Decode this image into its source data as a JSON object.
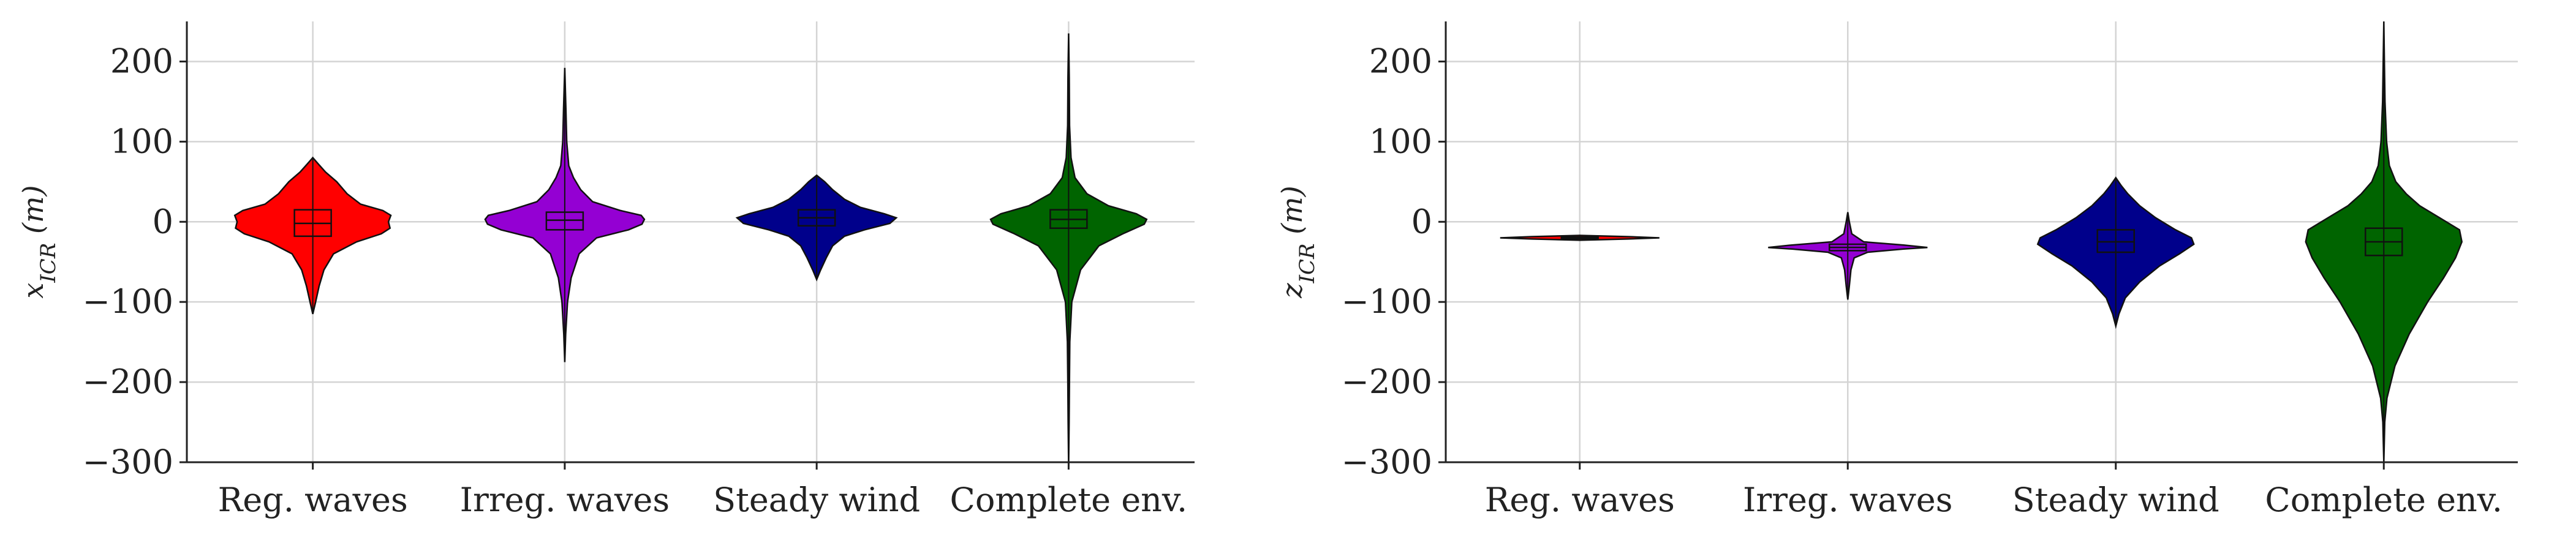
{
  "chart_data": [
    {
      "type": "violin",
      "ylabel": "x_ICR (m)",
      "ylim": [
        -300,
        250
      ],
      "yticks": [
        200,
        100,
        0,
        -100,
        -200,
        -300
      ],
      "ytick_labels": [
        "200",
        "100",
        "0",
        "−100",
        "−200",
        "−300"
      ],
      "categories": [
        "Reg. waves",
        "Irreg. waves",
        "Steady wind",
        "Complete env."
      ],
      "grid": true,
      "series": [
        {
          "color": "#ff0000",
          "min": -115,
          "q1": -18,
          "median": -2,
          "q3": 15,
          "max": 80,
          "density": [
            [
              -115,
              0
            ],
            [
              -100,
              0.035
            ],
            [
              -80,
              0.08
            ],
            [
              -60,
              0.14
            ],
            [
              -40,
              0.26
            ],
            [
              -25,
              0.55
            ],
            [
              -15,
              0.86
            ],
            [
              -8,
              0.97
            ],
            [
              0,
              0.95
            ],
            [
              8,
              0.98
            ],
            [
              14,
              0.88
            ],
            [
              22,
              0.6
            ],
            [
              35,
              0.43
            ],
            [
              50,
              0.3
            ],
            [
              62,
              0.16
            ],
            [
              72,
              0.07
            ],
            [
              80,
              0
            ]
          ]
        },
        {
          "color": "#9400d3",
          "min": -175,
          "q1": -10,
          "median": 2,
          "q3": 12,
          "max": 192,
          "density": [
            [
              -175,
              0
            ],
            [
              -140,
              0.012
            ],
            [
              -100,
              0.035
            ],
            [
              -70,
              0.08
            ],
            [
              -40,
              0.18
            ],
            [
              -20,
              0.4
            ],
            [
              -10,
              0.8
            ],
            [
              -3,
              0.97
            ],
            [
              3,
              1
            ],
            [
              8,
              0.96
            ],
            [
              14,
              0.7
            ],
            [
              25,
              0.35
            ],
            [
              40,
              0.2
            ],
            [
              55,
              0.11
            ],
            [
              70,
              0.05
            ],
            [
              100,
              0.025
            ],
            [
              140,
              0.015
            ],
            [
              192,
              0
            ]
          ]
        },
        {
          "color": "#00008b",
          "min": -72,
          "q1": -5,
          "median": 5,
          "q3": 15,
          "max": 58,
          "density": [
            [
              -72,
              0
            ],
            [
              -60,
              0.05
            ],
            [
              -45,
              0.12
            ],
            [
              -30,
              0.2
            ],
            [
              -18,
              0.35
            ],
            [
              -10,
              0.6
            ],
            [
              -2,
              0.92
            ],
            [
              5,
              1
            ],
            [
              10,
              0.85
            ],
            [
              18,
              0.55
            ],
            [
              28,
              0.35
            ],
            [
              40,
              0.2
            ],
            [
              50,
              0.1
            ],
            [
              58,
              0
            ]
          ]
        },
        {
          "color": "#006400",
          "min": -305,
          "q1": -8,
          "median": 3,
          "q3": 15,
          "max": 235,
          "density": [
            [
              -305,
              0
            ],
            [
              -250,
              0.006
            ],
            [
              -200,
              0.01
            ],
            [
              -150,
              0.015
            ],
            [
              -100,
              0.04
            ],
            [
              -60,
              0.15
            ],
            [
              -30,
              0.38
            ],
            [
              -15,
              0.68
            ],
            [
              -3,
              0.95
            ],
            [
              3,
              0.98
            ],
            [
              10,
              0.85
            ],
            [
              20,
              0.5
            ],
            [
              35,
              0.23
            ],
            [
              55,
              0.08
            ],
            [
              80,
              0.03
            ],
            [
              120,
              0.012
            ],
            [
              180,
              0.008
            ],
            [
              235,
              0
            ]
          ]
        }
      ]
    },
    {
      "type": "violin",
      "ylabel": "z_ICR (m)",
      "ylim": [
        -300,
        250
      ],
      "yticks": [
        200,
        100,
        0,
        -100,
        -200,
        -300
      ],
      "ytick_labels": [
        "200",
        "100",
        "0",
        "−100",
        "−200",
        "−300"
      ],
      "categories": [
        "Reg. waves",
        "Irreg. waves",
        "Steady wind",
        "Complete env."
      ],
      "grid": true,
      "series": [
        {
          "color": "#ff0000",
          "min": -23,
          "q1": -21,
          "median": -20,
          "q3": -19,
          "max": -17,
          "density": [
            [
              -23,
              0
            ],
            [
              -21.5,
              0.6
            ],
            [
              -20,
              1
            ],
            [
              -18.5,
              0.6
            ],
            [
              -17,
              0
            ]
          ]
        },
        {
          "color": "#9400d3",
          "min": -97,
          "q1": -36,
          "median": -32,
          "q3": -28,
          "max": 12,
          "density": [
            [
              -97,
              0
            ],
            [
              -80,
              0.02
            ],
            [
              -60,
              0.04
            ],
            [
              -45,
              0.08
            ],
            [
              -38,
              0.25
            ],
            [
              -34,
              0.7
            ],
            [
              -32,
              1
            ],
            [
              -29,
              0.7
            ],
            [
              -25,
              0.2
            ],
            [
              -15,
              0.05
            ],
            [
              0,
              0.02
            ],
            [
              12,
              0
            ]
          ]
        },
        {
          "color": "#00008b",
          "min": -130,
          "q1": -38,
          "median": -25,
          "q3": -10,
          "max": 55,
          "density": [
            [
              -130,
              0
            ],
            [
              -115,
              0.04
            ],
            [
              -95,
              0.12
            ],
            [
              -75,
              0.3
            ],
            [
              -55,
              0.55
            ],
            [
              -40,
              0.8
            ],
            [
              -28,
              0.98
            ],
            [
              -20,
              0.95
            ],
            [
              -10,
              0.75
            ],
            [
              5,
              0.5
            ],
            [
              20,
              0.3
            ],
            [
              35,
              0.15
            ],
            [
              45,
              0.07
            ],
            [
              55,
              0
            ]
          ]
        },
        {
          "color": "#006400",
          "min": -300,
          "q1": -42,
          "median": -25,
          "q3": -8,
          "max": 250,
          "density": [
            [
              -300,
              0
            ],
            [
              -250,
              0.012
            ],
            [
              -220,
              0.04
            ],
            [
              -180,
              0.14
            ],
            [
              -140,
              0.32
            ],
            [
              -100,
              0.55
            ],
            [
              -70,
              0.75
            ],
            [
              -45,
              0.9
            ],
            [
              -25,
              0.98
            ],
            [
              -10,
              0.95
            ],
            [
              5,
              0.7
            ],
            [
              20,
              0.45
            ],
            [
              35,
              0.28
            ],
            [
              50,
              0.15
            ],
            [
              70,
              0.07
            ],
            [
              100,
              0.035
            ],
            [
              150,
              0.015
            ],
            [
              200,
              0.007
            ],
            [
              250,
              0
            ]
          ]
        }
      ]
    }
  ]
}
